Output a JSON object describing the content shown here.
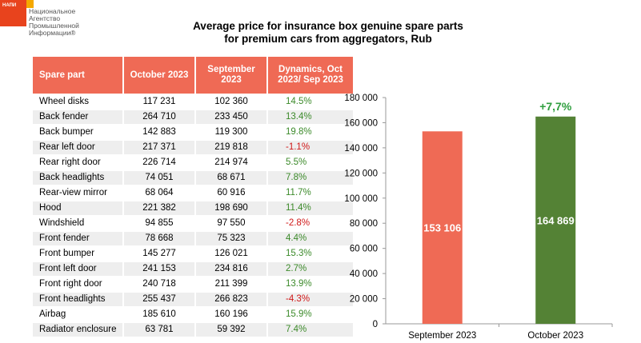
{
  "logo": {
    "small_text": "НАПИ",
    "lines": [
      "Национальное",
      "Агентство",
      "Промышленной",
      "Информации®"
    ]
  },
  "title": {
    "line1": "Average price for insurance box genuine spare parts",
    "line2": "for premium cars from aggregators, Rub"
  },
  "table": {
    "headers": [
      "Spare part",
      "October 2023",
      "September 2023",
      "Dynamics, Oct 2023/ Sep 2023"
    ],
    "rows": [
      {
        "part": "Wheel disks",
        "oct": "117 231",
        "sep": "102 360",
        "dyn": "14.5%"
      },
      {
        "part": "Back fender",
        "oct": "264 710",
        "sep": "233 450",
        "dyn": "13.4%"
      },
      {
        "part": "Back bumper",
        "oct": "142 883",
        "sep": "119 300",
        "dyn": "19.8%"
      },
      {
        "part": "Rear left door",
        "oct": "217 371",
        "sep": "219 818",
        "dyn": "-1.1%"
      },
      {
        "part": "Rear right door",
        "oct": "226 714",
        "sep": "214 974",
        "dyn": "5.5%"
      },
      {
        "part": "Back headlights",
        "oct": "74 051",
        "sep": "68 671",
        "dyn": "7.8%"
      },
      {
        "part": "Rear-view mirror",
        "oct": "68 064",
        "sep": "60 916",
        "dyn": "11.7%"
      },
      {
        "part": "Hood",
        "oct": "221 382",
        "sep": "198 690",
        "dyn": "11.4%"
      },
      {
        "part": "Windshield",
        "oct": "94 855",
        "sep": "97 550",
        "dyn": "-2.8%"
      },
      {
        "part": "Front fender",
        "oct": "78 668",
        "sep": "75 323",
        "dyn": "4.4%"
      },
      {
        "part": "Front bumper",
        "oct": "145 277",
        "sep": "126 021",
        "dyn": "15.3%"
      },
      {
        "part": "Front left door",
        "oct": "241 153",
        "sep": "234 816",
        "dyn": "2.7%"
      },
      {
        "part": "Front right door",
        "oct": "240 718",
        "sep": "211 399",
        "dyn": "13.9%"
      },
      {
        "part": "Front headlights",
        "oct": "255 437",
        "sep": "266 823",
        "dyn": "-4.3%"
      },
      {
        "part": "Airbag",
        "oct": "185 610",
        "sep": "160 196",
        "dyn": "15.9%"
      },
      {
        "part": "Radiator enclosure",
        "oct": "63 781",
        "sep": "59 392",
        "dyn": "7.4%"
      }
    ]
  },
  "colors": {
    "header": "#ef6a55",
    "positive": "#3c8a2a",
    "negative": "#d01818"
  },
  "chart_data": {
    "type": "bar",
    "categories": [
      "September 2023",
      "October 2023"
    ],
    "values": [
      153106,
      164869
    ],
    "data_labels": [
      "153 106",
      "164 869"
    ],
    "bar_colors": [
      "#ef6a55",
      "#548235"
    ],
    "annotation": "+7,7%",
    "annotation_color": "#2e9e3e",
    "ylim": [
      0,
      180000
    ],
    "yticks": [
      0,
      20000,
      40000,
      60000,
      80000,
      100000,
      120000,
      140000,
      160000,
      180000
    ],
    "ytick_labels": [
      "0",
      "20 000",
      "40 000",
      "60 000",
      "80 000",
      "100 000",
      "120 000",
      "140 000",
      "160 000",
      "180 000"
    ],
    "grid": false
  }
}
